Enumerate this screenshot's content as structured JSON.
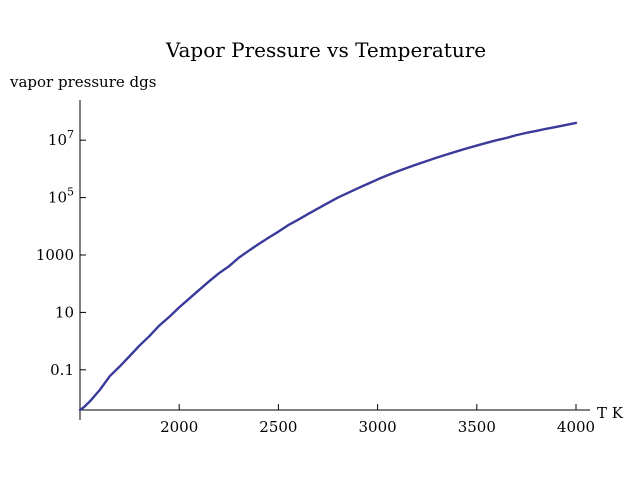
{
  "chart_data": {
    "type": "line",
    "title": "Vapor Pressure vs Temperature",
    "xlabel": "T K",
    "ylabel": "vapor pressure dgs",
    "x_scale": "linear",
    "y_scale": "log",
    "xlim": [
      1500,
      4000
    ],
    "ylim_log10": [
      -2.4,
      8.4
    ],
    "x_ticks": [
      {
        "value": 2000,
        "label": "2000"
      },
      {
        "value": 2500,
        "label": "2500"
      },
      {
        "value": 3000,
        "label": "3000"
      },
      {
        "value": 3500,
        "label": "3500"
      },
      {
        "value": 4000,
        "label": "4000"
      }
    ],
    "y_ticks": [
      {
        "value": 0.1,
        "label": "0.1",
        "base": "",
        "exp": ""
      },
      {
        "value": 10,
        "label": "10",
        "base": "",
        "exp": ""
      },
      {
        "value": 1000,
        "label": "1000",
        "base": "",
        "exp": ""
      },
      {
        "value": 100000,
        "label": "",
        "base": "10",
        "exp": "5"
      },
      {
        "value": 10000000,
        "label": "",
        "base": "10",
        "exp": "7"
      }
    ],
    "grid": false,
    "series": [
      {
        "color": "#3a3a9a",
        "x": [
          1500,
          1520,
          1550,
          1600,
          1650,
          1700,
          1750,
          1800,
          1850,
          1900,
          1950,
          2000,
          2050,
          2100,
          2150,
          2200,
          2250,
          2300,
          2350,
          2400,
          2450,
          2500,
          2550,
          2600,
          2650,
          2700,
          2750,
          2800,
          2850,
          2900,
          2950,
          3000,
          3050,
          3100,
          3150,
          3200,
          3250,
          3300,
          3350,
          3400,
          3450,
          3500,
          3550,
          3600,
          3650,
          3700,
          3750,
          3800,
          3850,
          3900,
          3950,
          4000
        ],
        "y": [
          0.004,
          0.005,
          0.008,
          0.02,
          0.06,
          0.13,
          0.3,
          0.7,
          1.5,
          3.5,
          7,
          15,
          30,
          60,
          120,
          230,
          400,
          800,
          1400,
          2400,
          4000,
          6500,
          11000,
          17000,
          27000,
          42000,
          65000,
          100000,
          145000,
          210000,
          300000,
          430000,
          600000,
          820000,
          1100000,
          1450000,
          1900000,
          2500000,
          3200000,
          4100000,
          5200000,
          6500000,
          8100000,
          10000000,
          12000000,
          15000000,
          18000000,
          21000000,
          25000000,
          29000000,
          34000000,
          40000000
        ]
      }
    ]
  }
}
